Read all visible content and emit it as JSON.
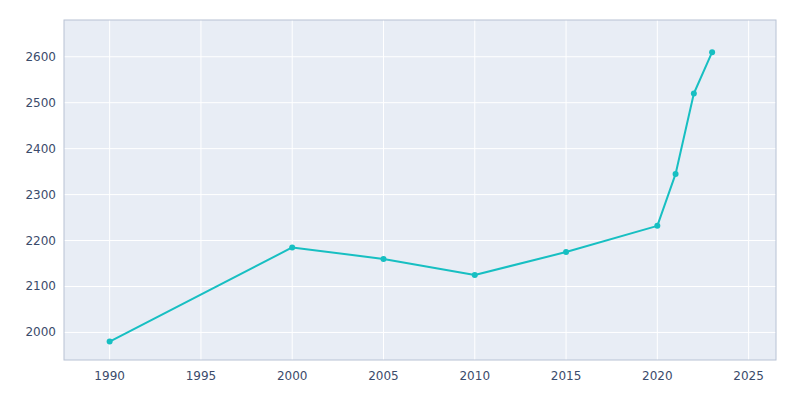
{
  "chart_data": {
    "type": "line",
    "x": [
      1990,
      2000,
      2005,
      2010,
      2015,
      2020,
      2021,
      2022,
      2023
    ],
    "values": [
      1980,
      2185,
      2160,
      2125,
      2175,
      2232,
      2345,
      2520,
      2610
    ],
    "color": "#17BFC2",
    "marker": "circle",
    "xlim": [
      1987.5,
      2026.5
    ],
    "ylim": [
      1940,
      2680
    ],
    "xticks": [
      1990,
      1995,
      2000,
      2005,
      2010,
      2015,
      2020,
      2025
    ],
    "yticks": [
      2000,
      2100,
      2200,
      2300,
      2400,
      2500,
      2600
    ],
    "grid": true
  }
}
